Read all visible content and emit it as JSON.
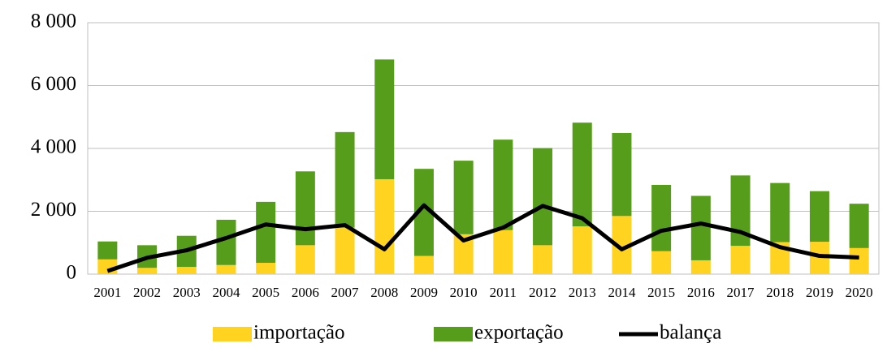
{
  "chart_data": {
    "type": "bar",
    "categories": [
      "2001",
      "2002",
      "2003",
      "2004",
      "2005",
      "2006",
      "2007",
      "2008",
      "2009",
      "2010",
      "2011",
      "2012",
      "2013",
      "2014",
      "2015",
      "2016",
      "2017",
      "2018",
      "2019",
      "2020"
    ],
    "series": [
      {
        "name": "importação",
        "color": "#ffd320",
        "values": [
          470,
          200,
          230,
          290,
          360,
          920,
          1480,
          3020,
          580,
          1270,
          1400,
          920,
          1520,
          1850,
          730,
          440,
          900,
          1020,
          1030,
          830
        ]
      },
      {
        "name": "exportação",
        "color": "#579d1c",
        "values": [
          570,
          720,
          990,
          1440,
          1940,
          2350,
          3040,
          3810,
          2770,
          2340,
          2880,
          3090,
          3300,
          2640,
          2110,
          2050,
          2240,
          1880,
          1610,
          1410
        ]
      },
      {
        "name": "balança",
        "type": "line",
        "color": "#000000",
        "values": [
          100,
          520,
          760,
          1150,
          1580,
          1430,
          1560,
          790,
          2190,
          1070,
          1480,
          2170,
          1780,
          790,
          1380,
          1610,
          1340,
          860,
          580,
          530
        ]
      }
    ],
    "stacked": true,
    "ylim": [
      0,
      8000
    ],
    "yticks": [
      0,
      {
        "value": 2000,
        "label": "2 000"
      },
      {
        "value": 4000,
        "label": "4 000"
      },
      {
        "value": 6000,
        "label": "6 000"
      },
      {
        "value": 8000,
        "label": "8 000"
      }
    ],
    "grid": true,
    "legend": "bottom"
  }
}
